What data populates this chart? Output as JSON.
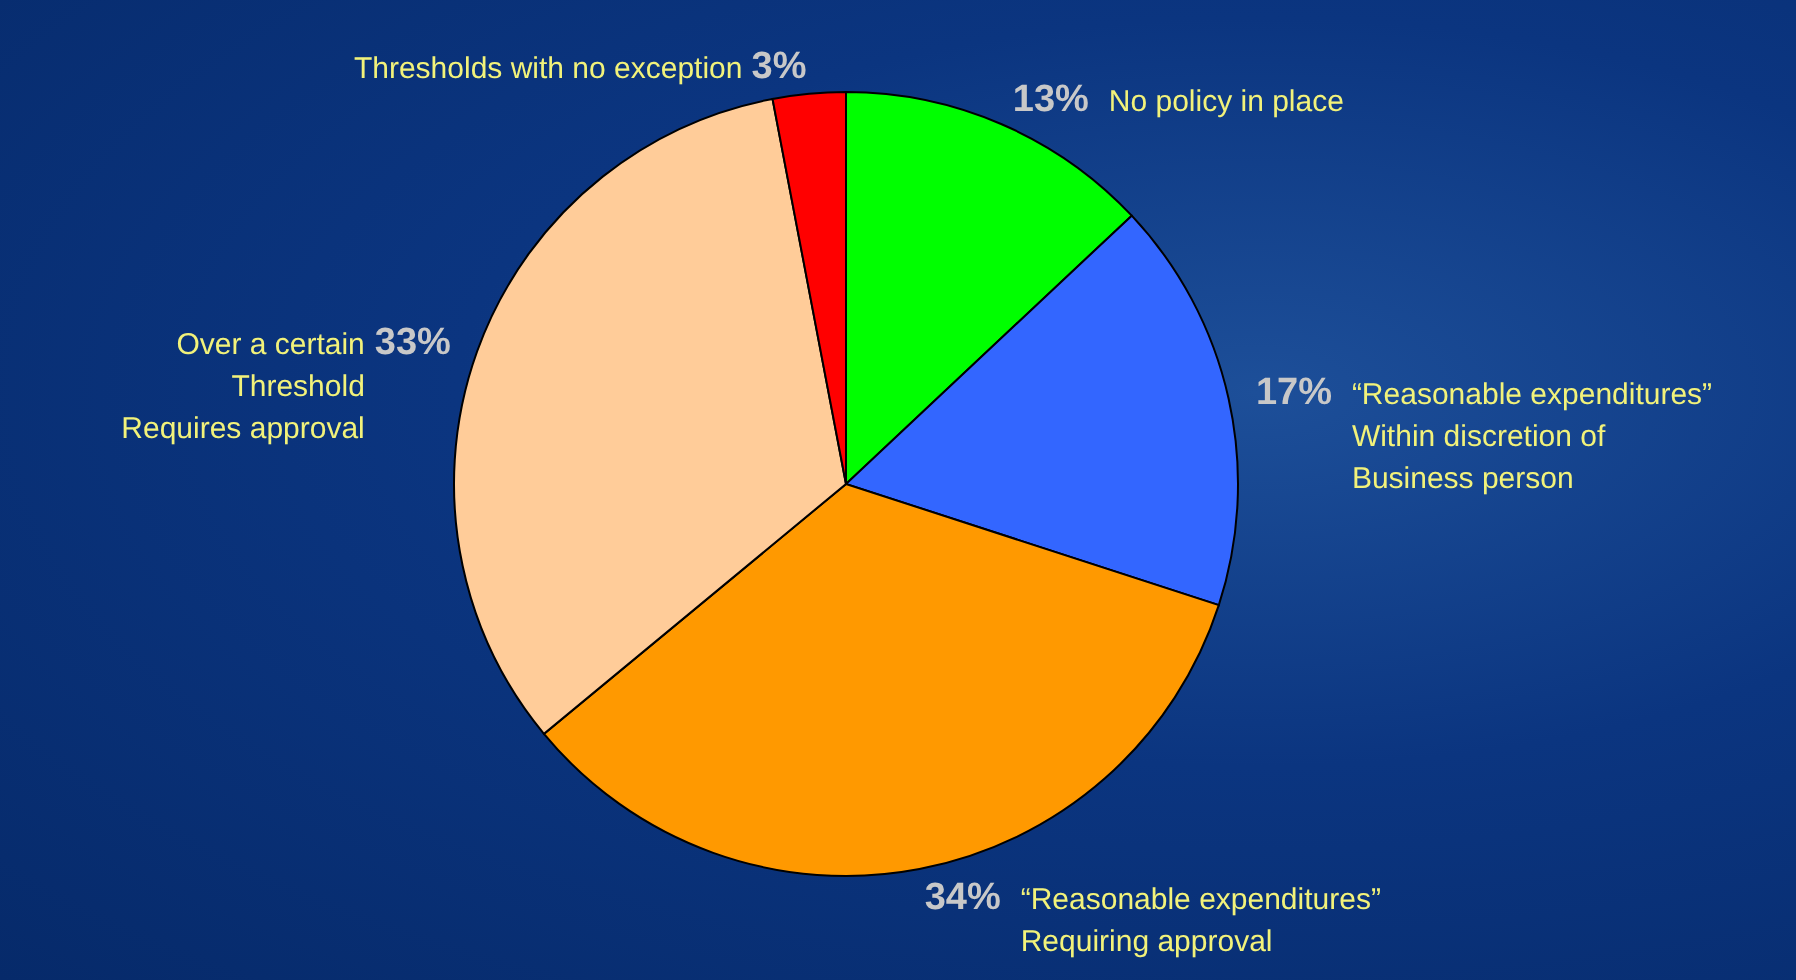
{
  "chart_data": {
    "type": "pie",
    "categories": [
      "No policy in place",
      "“Reasonable expenditures”\nWithin discretion of\nBusiness person",
      "“Reasonable expenditures”\nRequiring approval",
      "Over a certain\nThreshold\nRequires approval",
      "Thresholds with no exception"
    ],
    "values": [
      13,
      17,
      34,
      33,
      3
    ],
    "colors": [
      "#00ff00",
      "#3366ff",
      "#ff9900",
      "#ffcc99",
      "#ff0000"
    ],
    "value_labels": [
      "13%",
      "17%",
      "34%",
      "33%",
      "3%"
    ]
  }
}
